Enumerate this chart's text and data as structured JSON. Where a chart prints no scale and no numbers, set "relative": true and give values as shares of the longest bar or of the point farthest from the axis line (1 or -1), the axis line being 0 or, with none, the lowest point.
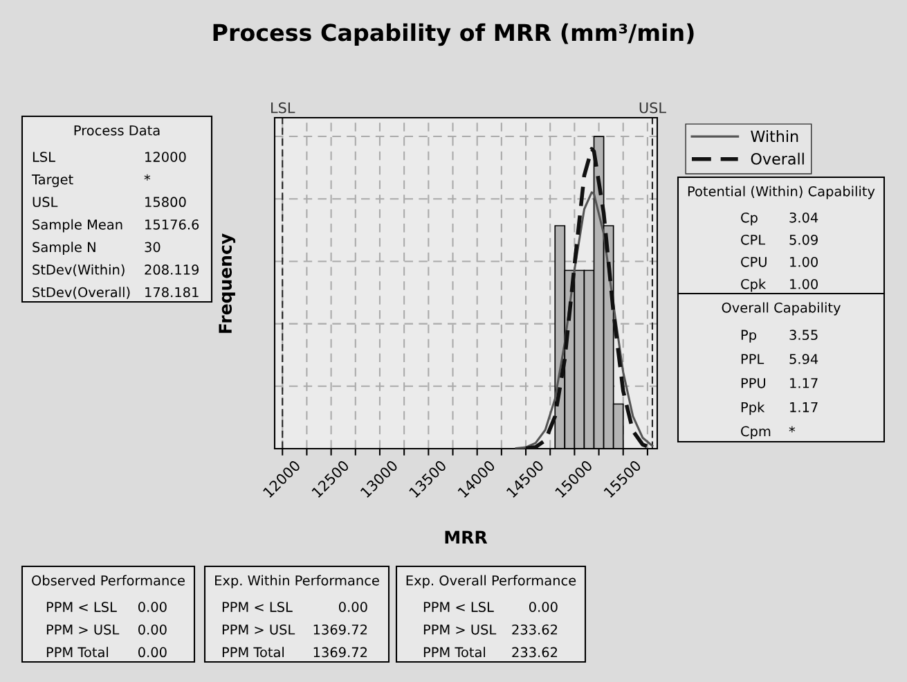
{
  "chart_data": {
    "type": "histogram",
    "title": "Process Capability of MRR (mm³/min)",
    "xlabel": "MRR",
    "ylabel": "Frequency",
    "relative": true,
    "bins": [
      14800,
      14900,
      15000,
      15100,
      15200,
      15300,
      15400,
      15500
    ],
    "values": [
      0.714,
      0.571,
      0.571,
      0.571,
      1,
      0.714,
      0.143
    ],
    "color": "#b4b4b4",
    "series": [
      {
        "name": "Within",
        "type": "line",
        "color": "#555555",
        "line_style": "solid",
        "x": [
          14400,
          14500,
          14600,
          14700,
          14800,
          14900,
          15000,
          15100,
          15176.6,
          15200,
          15300,
          15400,
          15500,
          15600,
          15700,
          15800
        ],
        "values": [
          0.0008,
          0.0042,
          0.018,
          0.06,
          0.16,
          0.339,
          0.573,
          0.767,
          0.821,
          0.816,
          0.689,
          0.461,
          0.245,
          0.104,
          0.035,
          0.009
        ]
      },
      {
        "name": "Overall",
        "type": "line",
        "color": "#111111",
        "line_style": "dashed",
        "x": [
          14500,
          14600,
          14700,
          14800,
          14900,
          15000,
          15100,
          15176.6,
          15200,
          15300,
          15400,
          15500,
          15600,
          15700,
          15800
        ],
        "values": [
          0.0007,
          0.005,
          0.027,
          0.103,
          0.287,
          0.588,
          0.875,
          0.96,
          0.952,
          0.755,
          0.437,
          0.185,
          0.057,
          0.013,
          0.002
        ]
      }
    ],
    "xlim": [
      11920,
      15850
    ],
    "xticks": [
      12000,
      {
        "value": 12250,
        "label": null
      },
      12500,
      {
        "value": 12750,
        "label": null
      },
      13000,
      {
        "value": 13250,
        "label": null
      },
      13500,
      {
        "value": 13750,
        "label": null
      },
      14000,
      {
        "value": 14250,
        "label": null
      },
      14500,
      {
        "value": 14750,
        "label": null
      },
      15000,
      {
        "value": 15250,
        "label": null
      },
      15500,
      {
        "value": 15750,
        "label": null
      }
    ],
    "ref_lines": [
      {
        "axis": "x",
        "value": 12000,
        "label": "LSL",
        "color": "#222222",
        "line_style": "dashed"
      },
      {
        "axis": "x",
        "value": 15800,
        "label": "USL",
        "color": "#222222",
        "line_style": "dashed"
      }
    ],
    "grid": true,
    "legend": "top right",
    "tick_labels": "x",
    "annotations": [
      "Process Data",
      "LSL",
      "12000",
      "Target",
      "*",
      "USL",
      "15800",
      "Sample Mean",
      "15176.6",
      "Sample N",
      "30",
      "StDev(Within)",
      "208.119",
      "StDev(Overall)",
      "178.181",
      "Potential (Within) Capability",
      "Cp",
      "3.04",
      "CPL",
      "5.09",
      "CPU",
      "1.00",
      "Cpk",
      "1.00",
      "Overall Capability",
      "Pp",
      "3.55",
      "PPL",
      "5.94",
      "PPU",
      "1.17",
      "Ppk",
      "1.17",
      "Cpm",
      "*",
      "Observed Performance",
      "PPM < LSL",
      "0.00",
      "PPM > USL",
      "0.00",
      "PPM Total",
      "0.00",
      "Exp. Within Performance",
      "PPM < LSL",
      "0.00",
      "PPM > USL",
      "1369.72",
      "PPM Total",
      "1369.72",
      "Exp. Overall Performance",
      "PPM < LSL",
      "0.00",
      "PPM > USL",
      "233.62",
      "PPM Total",
      "233.62"
    ]
  }
}
